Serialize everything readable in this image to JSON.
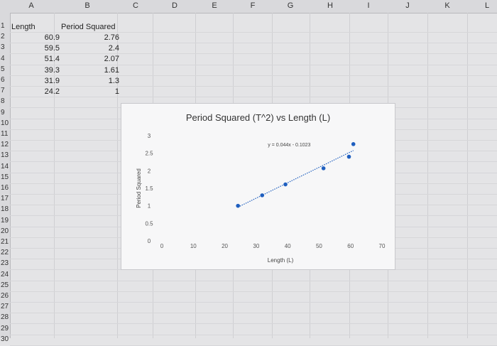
{
  "columns": [
    "A",
    "B",
    "C",
    "D",
    "E",
    "F",
    "G",
    "H",
    "I",
    "J",
    "K",
    "L"
  ],
  "rows": [
    "1",
    "2",
    "3",
    "4",
    "5",
    "6",
    "7",
    "8",
    "9",
    "10",
    "11",
    "12",
    "13",
    "14",
    "15",
    "16",
    "17",
    "18",
    "19",
    "20",
    "21",
    "22",
    "23",
    "24",
    "25",
    "26",
    "27",
    "28",
    "29",
    "30"
  ],
  "sheet": {
    "header_a": "Length",
    "header_b": "Period Squared",
    "data": [
      {
        "length": "60.9",
        "period": "2.76"
      },
      {
        "length": "59.5",
        "period": "2.4"
      },
      {
        "length": "51.4",
        "period": "2.07"
      },
      {
        "length": "39.3",
        "period": "1.61"
      },
      {
        "length": "31.9",
        "period": "1.3"
      },
      {
        "length": "24.2",
        "period": "1"
      }
    ]
  },
  "chart_data": {
    "type": "scatter",
    "title": "Period Squared (T^2) vs Length (L)",
    "xlabel": "Length (L)",
    "ylabel": "Period Squared",
    "xlim": [
      0,
      70
    ],
    "ylim": [
      0,
      3
    ],
    "xticks": [
      "0",
      "10",
      "20",
      "30",
      "40",
      "50",
      "60",
      "70"
    ],
    "yticks": [
      "0",
      "0.5",
      "1",
      "1.5",
      "2",
      "2.5",
      "3"
    ],
    "trendline_equation": "y = 0.044x - 0.1023",
    "trendline": {
      "slope": 0.044,
      "intercept": -0.1023
    },
    "x": [
      60.9,
      59.5,
      51.4,
      39.3,
      31.9,
      24.2
    ],
    "y": [
      2.76,
      2.4,
      2.07,
      1.61,
      1.3,
      1
    ],
    "marker_color": "#1f5fbf",
    "trend_color": "#1f5fbf",
    "grid": false,
    "legend": "none"
  }
}
